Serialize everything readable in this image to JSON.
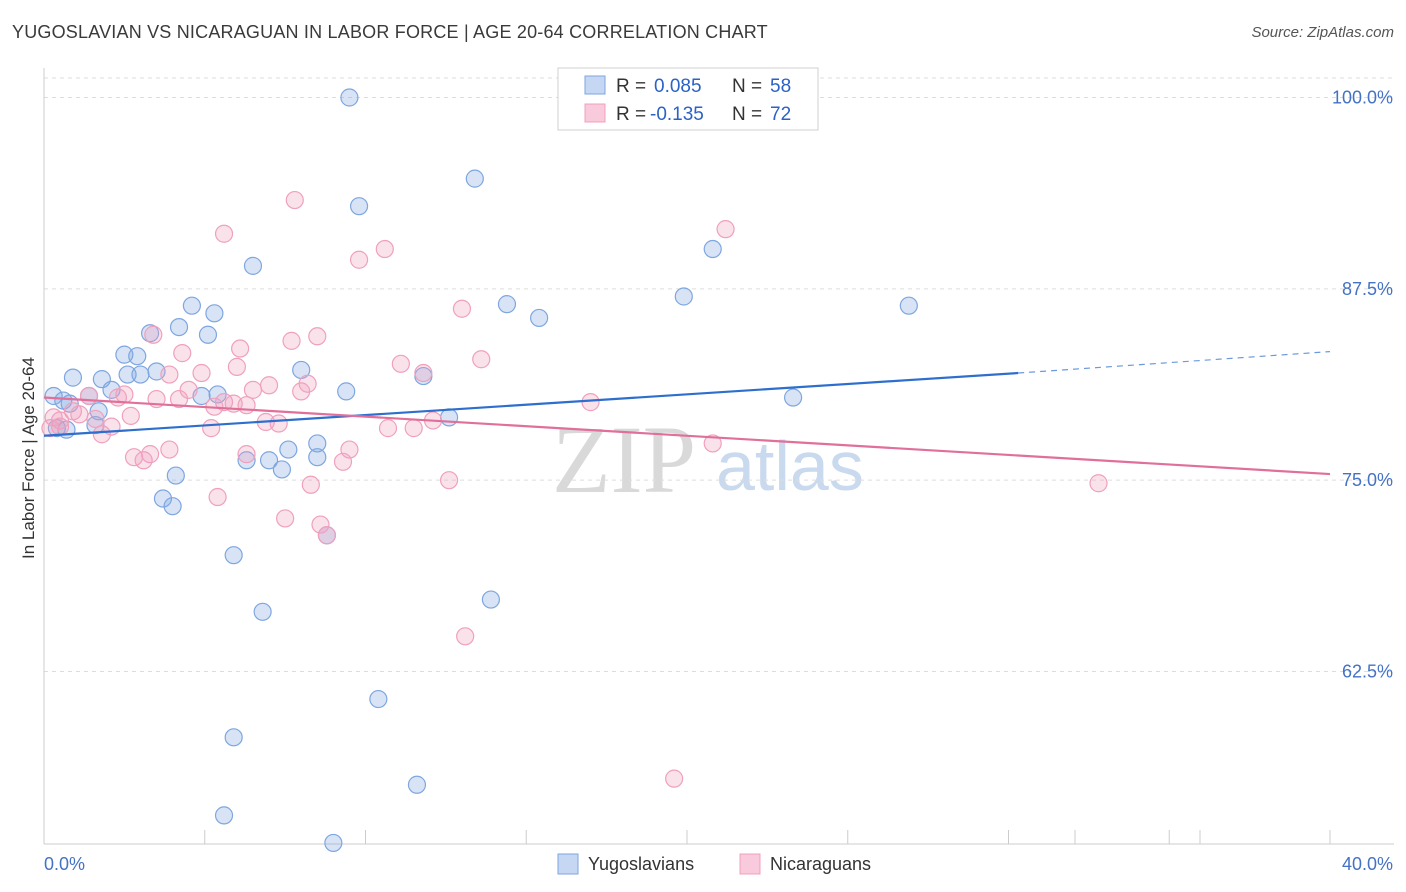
{
  "header": {
    "title": "YUGOSLAVIAN VS NICARAGUAN IN LABOR FORCE | AGE 20-64 CORRELATION CHART",
    "source": "Source: ZipAtlas.com"
  },
  "watermark": {
    "part1": "ZIP",
    "part2": "atlas"
  },
  "legend": {
    "r_label": "R =",
    "n_label": "N =",
    "rows": [
      {
        "r": "0.085",
        "n": "58"
      },
      {
        "r": "-0.135",
        "n": "72"
      }
    ]
  },
  "chart_data": {
    "type": "scatter",
    "title": "YUGOSLAVIAN VS NICARAGUAN IN LABOR FORCE | AGE 20-64 CORRELATION CHART",
    "xlabel": "",
    "ylabel": "In Labor Force | Age 20-64",
    "xlim": [
      0,
      40
    ],
    "ylim": [
      51.5,
      101.5
    ],
    "x_tick_labels": [
      {
        "value": 0,
        "label": "0.0%"
      },
      {
        "value": 40,
        "label": "40.0%"
      }
    ],
    "y_tick_labels": [
      {
        "value": 100,
        "label": "100.0%"
      },
      {
        "value": 87.5,
        "label": "87.5%"
      },
      {
        "value": 75,
        "label": "75.0%"
      },
      {
        "value": 62.5,
        "label": "62.5%"
      }
    ],
    "colors": {
      "yugoslavians": "#7ea6e0",
      "nicaraguans": "#f0a0bd",
      "yug_line": "#2e6fce",
      "nic_line": "#e0709a"
    },
    "series": [
      {
        "name": "Yugoslavians",
        "r": 0.085,
        "n": 58,
        "trend": {
          "x0": 0,
          "y0": 77.9,
          "x1": 30.3,
          "y1": 82.0,
          "dash_x1": 40,
          "dash_y1": 83.4
        },
        "points": [
          [
            9.5,
            100.0
          ],
          [
            13.4,
            94.7
          ],
          [
            9.8,
            92.9
          ],
          [
            6.5,
            89.0
          ],
          [
            20.8,
            90.1
          ],
          [
            19.9,
            87.0
          ],
          [
            14.4,
            86.5
          ],
          [
            15.4,
            85.6
          ],
          [
            26.9,
            86.4
          ],
          [
            4.6,
            86.4
          ],
          [
            5.3,
            85.9
          ],
          [
            4.2,
            85.0
          ],
          [
            3.3,
            84.6
          ],
          [
            5.1,
            84.5
          ],
          [
            2.5,
            83.2
          ],
          [
            2.9,
            83.1
          ],
          [
            3.5,
            82.1
          ],
          [
            2.6,
            81.9
          ],
          [
            8.0,
            82.2
          ],
          [
            3.0,
            81.9
          ],
          [
            1.8,
            81.6
          ],
          [
            0.9,
            81.7
          ],
          [
            11.8,
            81.8
          ],
          [
            2.1,
            80.9
          ],
          [
            9.4,
            80.8
          ],
          [
            23.3,
            80.4
          ],
          [
            4.9,
            80.5
          ],
          [
            5.4,
            80.6
          ],
          [
            1.4,
            80.5
          ],
          [
            0.3,
            80.5
          ],
          [
            0.6,
            80.2
          ],
          [
            0.8,
            80.0
          ],
          [
            1.7,
            79.5
          ],
          [
            12.6,
            79.1
          ],
          [
            1.6,
            78.6
          ],
          [
            0.4,
            78.4
          ],
          [
            0.7,
            78.3
          ],
          [
            8.5,
            77.4
          ],
          [
            7.6,
            77.0
          ],
          [
            8.5,
            76.5
          ],
          [
            6.3,
            76.3
          ],
          [
            7.0,
            76.3
          ],
          [
            7.4,
            75.7
          ],
          [
            4.1,
            75.3
          ],
          [
            3.7,
            73.8
          ],
          [
            4.0,
            73.3
          ],
          [
            8.8,
            71.4
          ],
          [
            5.9,
            70.1
          ],
          [
            13.9,
            67.2
          ],
          [
            6.8,
            66.4
          ],
          [
            10.4,
            60.7
          ],
          [
            5.9,
            58.2
          ],
          [
            11.6,
            55.1
          ],
          [
            5.6,
            53.1
          ],
          [
            9.0,
            51.3
          ]
        ]
      },
      {
        "name": "Nicaraguans",
        "r": -0.135,
        "n": 72,
        "trend": {
          "x0": 0,
          "y0": 80.4,
          "x1": 40,
          "y1": 75.4
        },
        "points": [
          [
            7.8,
            93.3
          ],
          [
            21.2,
            91.4
          ],
          [
            5.6,
            91.1
          ],
          [
            10.6,
            90.1
          ],
          [
            9.8,
            89.4
          ],
          [
            13.0,
            86.2
          ],
          [
            8.5,
            84.4
          ],
          [
            7.7,
            84.1
          ],
          [
            3.4,
            84.5
          ],
          [
            6.1,
            83.6
          ],
          [
            4.3,
            83.3
          ],
          [
            13.6,
            82.9
          ],
          [
            11.1,
            82.6
          ],
          [
            6.0,
            82.4
          ],
          [
            4.9,
            82.0
          ],
          [
            11.8,
            82.0
          ],
          [
            3.9,
            81.9
          ],
          [
            8.2,
            81.3
          ],
          [
            7.0,
            81.2
          ],
          [
            6.5,
            80.9
          ],
          [
            8.0,
            80.8
          ],
          [
            4.5,
            80.9
          ],
          [
            2.5,
            80.6
          ],
          [
            1.4,
            80.5
          ],
          [
            3.5,
            80.3
          ],
          [
            5.6,
            80.1
          ],
          [
            4.2,
            80.3
          ],
          [
            2.3,
            80.4
          ],
          [
            5.9,
            80.0
          ],
          [
            6.3,
            79.9
          ],
          [
            5.3,
            79.8
          ],
          [
            17.0,
            80.1
          ],
          [
            0.9,
            79.5
          ],
          [
            1.1,
            79.3
          ],
          [
            0.3,
            79.1
          ],
          [
            2.7,
            79.2
          ],
          [
            0.5,
            78.9
          ],
          [
            1.6,
            79.0
          ],
          [
            7.3,
            78.7
          ],
          [
            6.9,
            78.8
          ],
          [
            12.1,
            78.9
          ],
          [
            2.1,
            78.5
          ],
          [
            5.2,
            78.4
          ],
          [
            10.7,
            78.4
          ],
          [
            11.5,
            78.4
          ],
          [
            0.5,
            78.5
          ],
          [
            0.2,
            78.4
          ],
          [
            1.8,
            78.0
          ],
          [
            20.8,
            77.4
          ],
          [
            3.9,
            77.0
          ],
          [
            3.3,
            76.7
          ],
          [
            9.5,
            77.0
          ],
          [
            2.8,
            76.5
          ],
          [
            6.3,
            76.7
          ],
          [
            3.1,
            76.3
          ],
          [
            9.3,
            76.2
          ],
          [
            12.6,
            75.0
          ],
          [
            8.3,
            74.7
          ],
          [
            32.8,
            74.8
          ],
          [
            5.4,
            73.9
          ],
          [
            7.5,
            72.5
          ],
          [
            8.6,
            72.1
          ],
          [
            8.8,
            71.4
          ],
          [
            13.1,
            64.8
          ],
          [
            19.6,
            55.5
          ]
        ]
      }
    ]
  },
  "bottom_legend": {
    "items": [
      "Yugoslavians",
      "Nicaraguans"
    ]
  }
}
